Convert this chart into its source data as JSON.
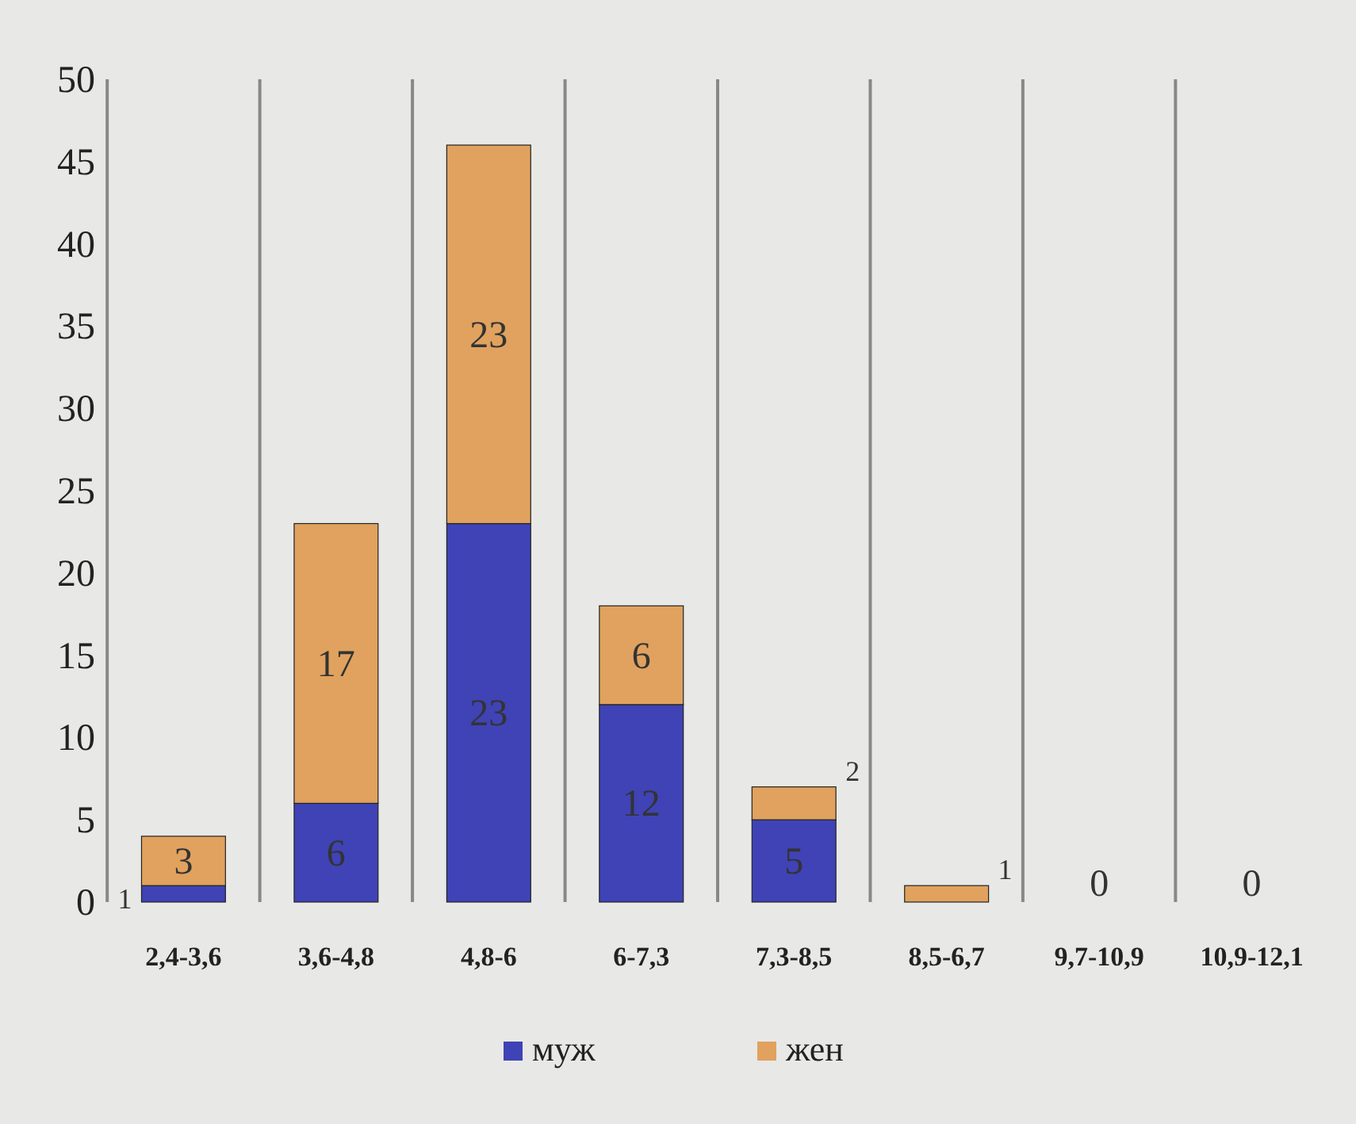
{
  "chart_data": {
    "type": "bar",
    "stacked": true,
    "categories": [
      "2,4-3,6",
      "3,6-4,8",
      "4,8-6",
      "6-7,3",
      "7,3-8,5",
      "8,5-6,7",
      "9,7-10,9",
      "10,9-12,1"
    ],
    "series": [
      {
        "name": "муж",
        "color": "#3f43b5",
        "values": [
          1,
          6,
          23,
          12,
          5,
          0,
          0,
          0
        ],
        "value_labels": [
          "1",
          "6",
          "23",
          "12",
          "5",
          null,
          "0",
          "0"
        ]
      },
      {
        "name": "жен",
        "color": "#e0a25e",
        "values": [
          3,
          17,
          23,
          6,
          2,
          1,
          0,
          0
        ],
        "value_labels": [
          "3",
          "17",
          "23",
          "6",
          "2",
          "1",
          null,
          null
        ]
      }
    ],
    "ylim": [
      0,
      50
    ],
    "yticks": [
      0,
      5,
      10,
      15,
      20,
      25,
      30,
      35,
      40,
      45,
      50
    ],
    "grid": "x",
    "legend": "bottom"
  }
}
